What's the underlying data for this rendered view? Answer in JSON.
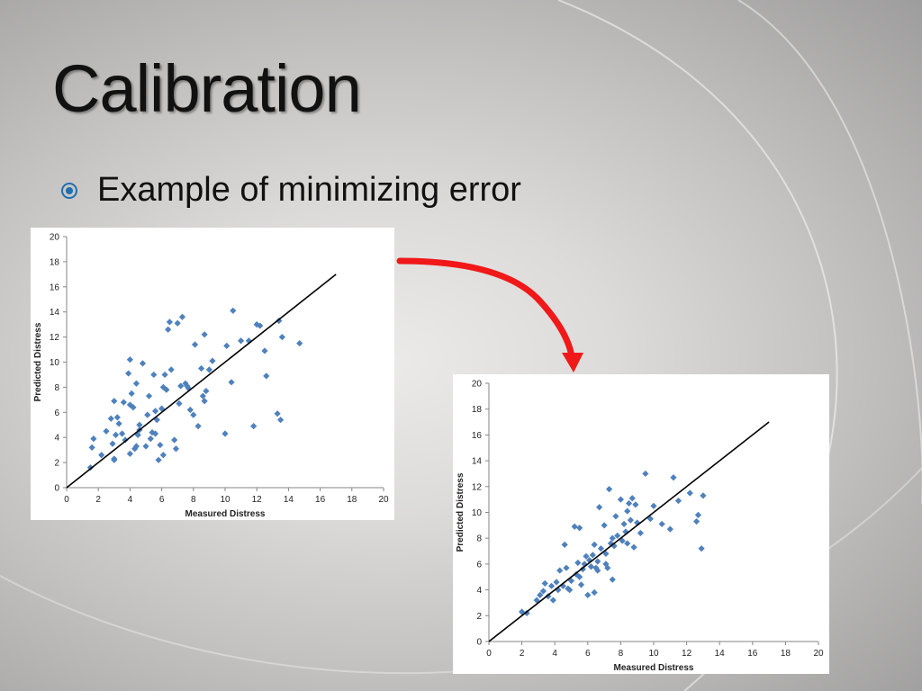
{
  "slide": {
    "title": "Calibration",
    "bullet": "Example of minimizing error",
    "bullet_icon": "circle-dot-icon",
    "accent_color": "#1f6fb2",
    "arrow_color": "#f01818"
  },
  "chart_data": [
    {
      "type": "scatter",
      "title": "",
      "xlabel": "Measured Distress",
      "ylabel": "Predicted Distress",
      "xlim": [
        0,
        20
      ],
      "ylim": [
        0,
        20
      ],
      "xticks": [
        0,
        2,
        4,
        6,
        8,
        10,
        12,
        14,
        16,
        18,
        20
      ],
      "yticks": [
        0,
        2,
        4,
        6,
        8,
        10,
        12,
        14,
        16,
        18,
        20
      ],
      "marker_color": "#4f81bd",
      "line": {
        "name": "",
        "x": [
          0,
          17
        ],
        "y": [
          0,
          17
        ],
        "color": "#000000"
      },
      "series": [
        {
          "name": "",
          "x": [
            1.5,
            1.6,
            1.7,
            2.2,
            2.5,
            2.8,
            2.9,
            3.0,
            3.0,
            3.1,
            3.2,
            3.3,
            3.5,
            3.6,
            3.7,
            3.9,
            4.0,
            4.0,
            4.1,
            4.2,
            4.3,
            4.4,
            4.5,
            4.6,
            4.6,
            4.8,
            5.0,
            5.1,
            5.2,
            5.3,
            5.4,
            5.5,
            5.6,
            5.7,
            5.8,
            5.9,
            6.0,
            6.1,
            6.2,
            6.3,
            6.4,
            6.5,
            6.6,
            6.8,
            6.9,
            7.0,
            7.1,
            7.2,
            7.3,
            7.5,
            7.6,
            7.7,
            7.8,
            8.0,
            8.1,
            8.3,
            8.5,
            8.6,
            8.7,
            8.8,
            9.0,
            9.2,
            10.0,
            10.1,
            10.4,
            10.5,
            11.0,
            11.5,
            11.8,
            12.0,
            12.2,
            12.5,
            12.6,
            13.3,
            13.4,
            13.5,
            13.6,
            14.7,
            4.0,
            4.4,
            5.6,
            6.1,
            3.0,
            8.7
          ],
          "y": [
            1.6,
            3.2,
            3.9,
            2.6,
            4.5,
            5.5,
            3.5,
            2.2,
            6.9,
            4.2,
            5.6,
            5.1,
            4.3,
            6.8,
            3.8,
            9.1,
            6.6,
            10.2,
            7.5,
            6.4,
            3.1,
            8.3,
            4.2,
            5.0,
            4.6,
            9.9,
            3.3,
            5.8,
            7.3,
            3.9,
            4.4,
            9.0,
            6.1,
            5.4,
            2.2,
            3.4,
            6.3,
            8.0,
            9.0,
            7.8,
            12.6,
            13.2,
            9.4,
            3.8,
            3.1,
            13.1,
            6.7,
            8.1,
            13.6,
            8.3,
            8.1,
            7.9,
            6.2,
            5.8,
            11.4,
            4.9,
            9.5,
            7.3,
            12.2,
            7.7,
            9.4,
            10.1,
            4.3,
            11.3,
            8.4,
            14.1,
            11.7,
            11.7,
            4.9,
            13.0,
            12.9,
            10.9,
            8.9,
            5.9,
            13.3,
            5.4,
            12.0,
            11.5,
            2.7,
            3.3,
            4.3,
            2.6,
            2.3,
            6.9
          ]
        }
      ]
    },
    {
      "type": "scatter",
      "title": "",
      "xlabel": "Measured Distress",
      "ylabel": "Predicted Distress",
      "xlim": [
        0,
        20
      ],
      "ylim": [
        0,
        20
      ],
      "xticks": [
        0,
        2,
        4,
        6,
        8,
        10,
        12,
        14,
        16,
        18,
        20
      ],
      "yticks": [
        0,
        2,
        4,
        6,
        8,
        10,
        12,
        14,
        16,
        18,
        20
      ],
      "marker_color": "#4f81bd",
      "line": {
        "name": "",
        "x": [
          0,
          17
        ],
        "y": [
          0,
          17
        ],
        "color": "#000000"
      },
      "series": [
        {
          "name": "",
          "x": [
            2.0,
            2.3,
            2.9,
            3.1,
            3.3,
            3.4,
            3.6,
            3.8,
            3.9,
            4.1,
            4.2,
            4.3,
            4.5,
            4.6,
            4.7,
            4.8,
            5.0,
            5.2,
            5.3,
            5.4,
            5.5,
            5.6,
            5.7,
            5.8,
            5.9,
            6.0,
            6.1,
            6.2,
            6.3,
            6.4,
            6.5,
            6.6,
            6.7,
            6.8,
            7.0,
            7.1,
            7.2,
            7.3,
            7.4,
            7.5,
            7.6,
            7.7,
            7.8,
            8.0,
            8.1,
            8.2,
            8.3,
            8.4,
            8.5,
            8.6,
            8.7,
            8.8,
            8.9,
            9.0,
            9.2,
            9.5,
            9.8,
            10.0,
            10.5,
            11.0,
            11.2,
            11.5,
            12.2,
            12.6,
            12.7,
            12.9,
            13.0,
            5.5,
            6.4,
            7.5,
            8.4,
            4.9,
            6.6,
            7.1
          ],
          "y": [
            2.3,
            2.2,
            3.2,
            3.6,
            3.9,
            4.5,
            3.5,
            4.3,
            3.2,
            4.6,
            4.0,
            5.5,
            4.3,
            7.5,
            5.7,
            4.1,
            4.7,
            8.9,
            5.2,
            6.1,
            8.8,
            4.4,
            5.6,
            6.0,
            6.6,
            3.6,
            6.3,
            5.8,
            6.7,
            7.5,
            5.7,
            6.2,
            10.4,
            7.2,
            9.0,
            6.0,
            5.7,
            11.8,
            7.6,
            8.0,
            7.4,
            9.7,
            8.2,
            11.0,
            7.8,
            9.1,
            8.5,
            10.1,
            10.7,
            9.4,
            11.1,
            7.3,
            10.6,
            9.2,
            8.4,
            13.0,
            9.5,
            10.5,
            9.1,
            8.7,
            12.7,
            10.9,
            11.5,
            9.3,
            9.8,
            7.2,
            11.3,
            5.0,
            3.8,
            4.8,
            7.6,
            4.0,
            5.5,
            6.8
          ]
        }
      ]
    }
  ]
}
